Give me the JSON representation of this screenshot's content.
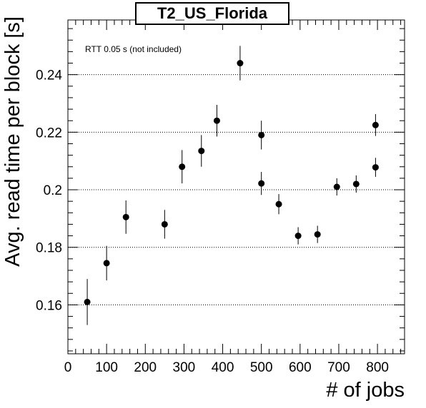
{
  "chart_data": {
    "type": "scatter",
    "title": "T2_US_Florida",
    "xlabel": "# of jobs",
    "ylabel": "Avg. read time per block [s]",
    "annotation": "RTT 0.05 s (not included)",
    "xlim": [
      0,
      870
    ],
    "ylim": [
      0.143,
      0.259
    ],
    "x_ticks": [
      0,
      100,
      200,
      300,
      400,
      500,
      600,
      700,
      800
    ],
    "y_ticks": [
      0.16,
      0.18,
      0.2,
      0.22,
      0.24
    ],
    "y_tick_labels": [
      "0.16",
      "0.18",
      "0.2",
      "0.22",
      "0.24"
    ],
    "y_grid": true,
    "points": [
      {
        "x": 50,
        "y": 0.161,
        "err": 0.008
      },
      {
        "x": 100,
        "y": 0.1745,
        "err": 0.006
      },
      {
        "x": 150,
        "y": 0.1905,
        "err": 0.0058
      },
      {
        "x": 250,
        "y": 0.188,
        "err": 0.005
      },
      {
        "x": 295,
        "y": 0.208,
        "err": 0.0058
      },
      {
        "x": 345,
        "y": 0.2135,
        "err": 0.0055
      },
      {
        "x": 385,
        "y": 0.224,
        "err": 0.0055
      },
      {
        "x": 445,
        "y": 0.244,
        "err": 0.006
      },
      {
        "x": 500,
        "y": 0.219,
        "err": 0.005
      },
      {
        "x": 500,
        "y": 0.2022,
        "err": 0.004
      },
      {
        "x": 545,
        "y": 0.195,
        "err": 0.0035
      },
      {
        "x": 595,
        "y": 0.184,
        "err": 0.003
      },
      {
        "x": 645,
        "y": 0.1845,
        "err": 0.003
      },
      {
        "x": 695,
        "y": 0.201,
        "err": 0.003
      },
      {
        "x": 745,
        "y": 0.202,
        "err": 0.003
      },
      {
        "x": 795,
        "y": 0.2225,
        "err": 0.0038
      },
      {
        "x": 795,
        "y": 0.2078,
        "err": 0.0033
      }
    ],
    "colors": {
      "marker": "#000000",
      "grid": "#000000",
      "axis": "#000000"
    }
  }
}
